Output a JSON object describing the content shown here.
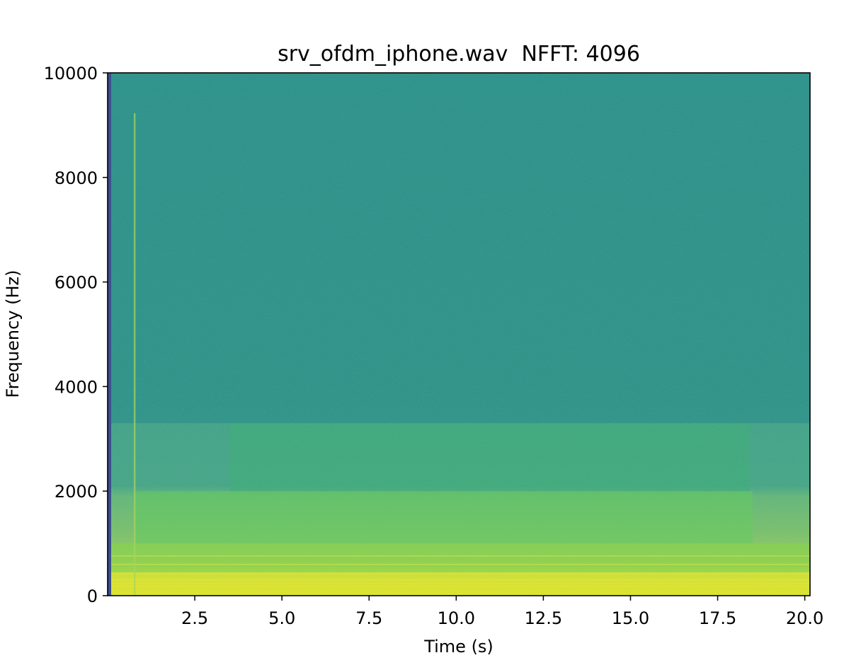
{
  "chart_data": {
    "type": "heatmap",
    "title": "srv_ofdm_iphone.wav  NFFT: 4096",
    "xlabel": "Time (s)",
    "ylabel": "Frequency (Hz)",
    "xlim": [
      0.0,
      20.15
    ],
    "ylim": [
      0,
      10000
    ],
    "xticks": [
      2.5,
      5.0,
      7.5,
      10.0,
      12.5,
      15.0,
      17.5,
      20.0
    ],
    "xtick_labels": [
      "2.5",
      "5.0",
      "7.5",
      "10.0",
      "12.5",
      "15.0",
      "17.5",
      "20.0"
    ],
    "yticks": [
      0,
      2000,
      4000,
      6000,
      8000,
      10000
    ],
    "ytick_labels": [
      "0",
      "2000",
      "4000",
      "6000",
      "8000",
      "10000"
    ],
    "colormap": "viridis",
    "grid": false,
    "colors": {
      "background_high_freq": "#3f9f8c",
      "mid_band": "#57ae83",
      "low_band": "#8cc66a",
      "lowest_band": "#d8e23a",
      "left_edge_dark": "#3b4f8c",
      "transient_line": "#a6d45f"
    },
    "energy_bands": [
      {
        "f_low": 0,
        "f_high": 450,
        "t_start": 0.1,
        "t_end": 20.15,
        "level": 0.92
      },
      {
        "f_low": 450,
        "f_high": 1000,
        "t_start": 0.1,
        "t_end": 20.15,
        "level": 0.72
      },
      {
        "f_low": 1000,
        "f_high": 2000,
        "t_start": 0.8,
        "t_end": 18.5,
        "level": 0.62
      },
      {
        "f_low": 2000,
        "f_high": 3300,
        "t_start": 3.5,
        "t_end": 18.4,
        "level": 0.5
      },
      {
        "f_low": 3300,
        "f_high": 10000,
        "t_start": 0.1,
        "t_end": 20.15,
        "level": 0.38
      }
    ],
    "tone_lines_hz": [
      180,
      230,
      300,
      420,
      600,
      760
    ],
    "transient_time_s": 0.75
  }
}
